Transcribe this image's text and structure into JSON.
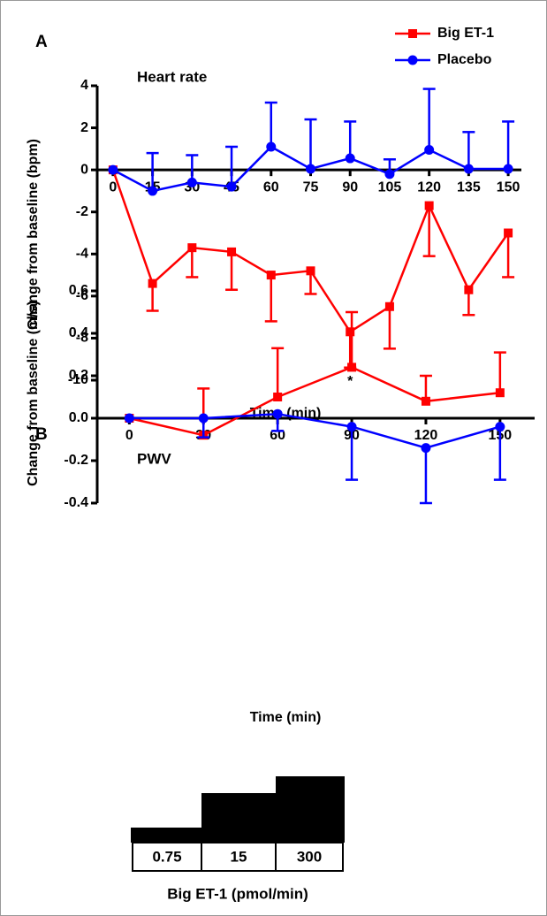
{
  "chart_data": [
    {
      "type": "line",
      "panel_label": "A",
      "title": "Heart rate",
      "x_label": "Time (min)",
      "y_label": "Change from baseline (bpm)",
      "x": [
        0,
        15,
        30,
        45,
        60,
        75,
        90,
        105,
        120,
        135,
        150
      ],
      "series": [
        {
          "name": "Big ET-1",
          "color": "#ff0000",
          "marker": "square",
          "error_direction": "down",
          "values": [
            0,
            -5.4,
            -3.7,
            -3.9,
            -5.0,
            -4.8,
            -7.7,
            -6.5,
            -1.7,
            -5.7,
            -3.0
          ],
          "errors": [
            0,
            1.3,
            1.4,
            1.8,
            2.2,
            1.1,
            1.7,
            2.0,
            2.4,
            1.2,
            2.1
          ]
        },
        {
          "name": "Placebo",
          "color": "#0000ff",
          "marker": "circle",
          "error_direction": "up",
          "values": [
            0,
            -1.0,
            -0.6,
            -0.8,
            1.1,
            0.05,
            0.55,
            -0.2,
            0.95,
            0.05,
            0.05
          ],
          "errors": [
            0,
            1.8,
            1.3,
            1.9,
            2.1,
            2.35,
            1.75,
            0.7,
            2.9,
            1.75,
            2.25
          ]
        }
      ],
      "annotations": [
        {
          "text": "*",
          "x": 90
        }
      ],
      "xlim": [
        -6,
        155
      ],
      "xticks": [
        0,
        15,
        30,
        45,
        60,
        75,
        90,
        105,
        120,
        135,
        150
      ],
      "ylim": [
        -10,
        4
      ],
      "yticks": [
        4,
        2,
        0,
        -2,
        -4,
        -6,
        -8,
        -10
      ],
      "legend": "upper right"
    },
    {
      "type": "line",
      "panel_label": "B",
      "title": "PWV",
      "x_label": "Time (min)",
      "y_label": "Change from baseline (m/s)",
      "x": [
        0,
        30,
        60,
        90,
        120,
        150
      ],
      "series": [
        {
          "name": "Big ET-1",
          "color": "#ff0000",
          "marker": "square",
          "error_direction": "up",
          "values": [
            0,
            -0.08,
            0.1,
            0.24,
            0.08,
            0.12
          ],
          "errors": [
            0,
            0.22,
            0.23,
            0.26,
            0.12,
            0.19
          ]
        },
        {
          "name": "Placebo",
          "color": "#0000ff",
          "marker": "circle",
          "error_direction": "down",
          "values": [
            0,
            0,
            0.02,
            -0.04,
            -0.14,
            -0.04
          ],
          "errors": [
            0,
            0.09,
            0.08,
            0.25,
            0.26,
            0.25
          ]
        }
      ],
      "xlim": [
        -13,
        164
      ],
      "xticks": [
        0,
        30,
        60,
        90,
        120,
        150
      ],
      "ylim": [
        -0.4,
        0.6
      ],
      "yticks": [
        0.6,
        0.4,
        0.2,
        {
          "value": 0,
          "label": "0.0"
        },
        -0.2,
        -0.4
      ]
    }
  ],
  "dosing": {
    "steps": [
      "0.75",
      "15",
      "300"
    ],
    "label": "Big ET-1 (pmol/min)"
  }
}
